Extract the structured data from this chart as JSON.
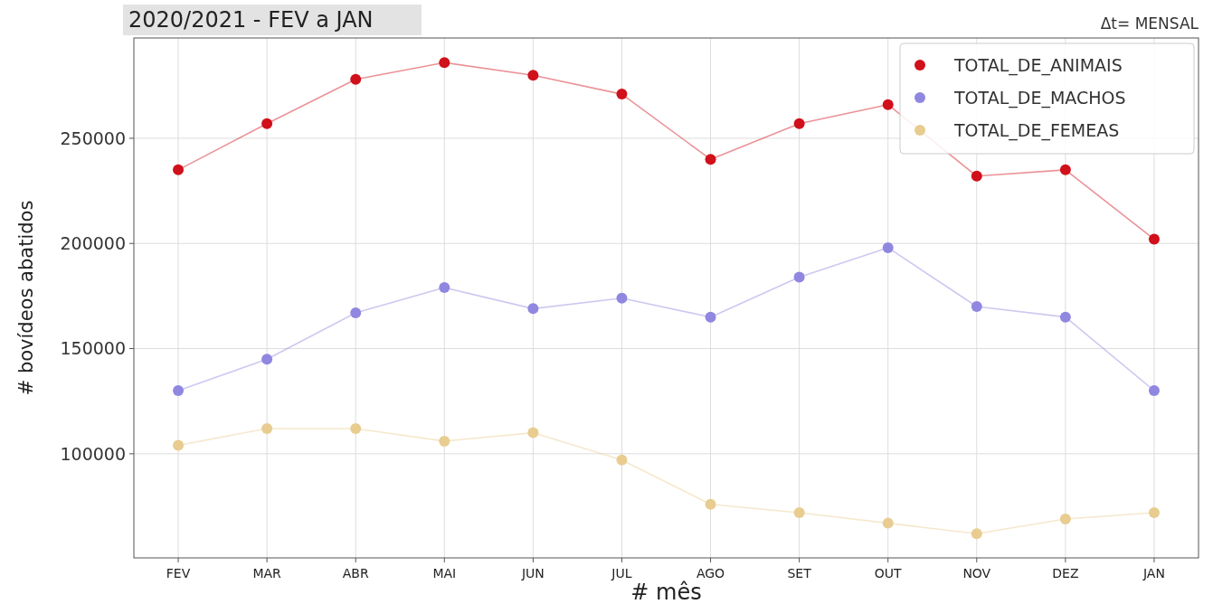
{
  "chart_data": {
    "type": "line",
    "title": "2020/2021 - FEV a JAN",
    "xlabel": "# mês",
    "ylabel": "# bovídeos abatidos",
    "annotations": [
      "Δt= MENSAL"
    ],
    "categories": [
      "FEV",
      "MAR",
      "ABR",
      "MAI",
      "JUN",
      "JUL",
      "AGO",
      "SET",
      "OUT",
      "NOV",
      "DEZ",
      "JAN"
    ],
    "series": [
      {
        "name": "TOTAL_DE_ANIMAIS",
        "color": "#d0101a",
        "values": [
          235000,
          257000,
          278000,
          286000,
          280000,
          271000,
          240000,
          257000,
          266000,
          232000,
          235000,
          202000
        ]
      },
      {
        "name": "TOTAL_DE_MACHOS",
        "color": "#8f87e0",
        "values": [
          130000,
          145000,
          167000,
          179000,
          169000,
          174000,
          165000,
          184000,
          198000,
          170000,
          165000,
          130000
        ]
      },
      {
        "name": "TOTAL_DE_FEMEAS",
        "color": "#e8cc90",
        "values": [
          104000,
          112000,
          112000,
          106000,
          110000,
          97000,
          76000,
          72000,
          67000,
          62000,
          69000,
          72000
        ]
      }
    ],
    "ylim": [
      50500,
      297700
    ],
    "yticks": [
      100000,
      150000,
      200000,
      250000
    ],
    "grid": true,
    "legend": "top right",
    "marker": "circle",
    "line_style": "solid"
  }
}
